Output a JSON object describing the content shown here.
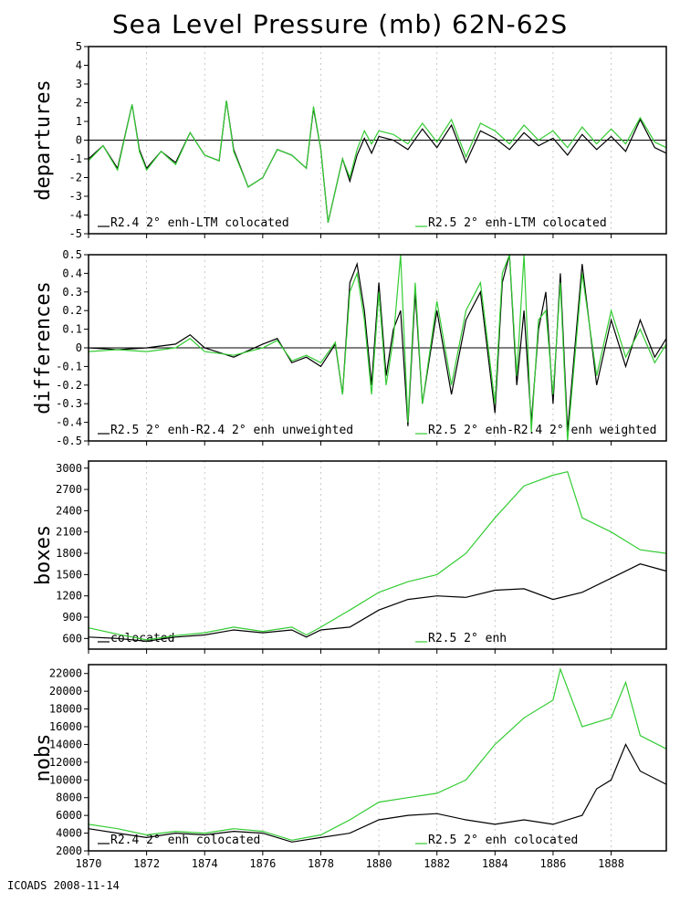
{
  "title": "Sea Level Pressure (mb) 62N-62S",
  "footer": "ICOADS 2008-11-14",
  "colors": {
    "black_series": "#000000",
    "green_series": "#33cc33",
    "zero_line": "#000000"
  },
  "chart_data": [
    {
      "type": "line",
      "ylabel": "departures",
      "ylim": [
        -5,
        5
      ],
      "yticks": [
        -5,
        -4,
        -3,
        -2,
        -1,
        0,
        1,
        2,
        3,
        4,
        5
      ],
      "xlim": [
        1870,
        1889.9
      ],
      "xticks": [
        1870,
        1872,
        1874,
        1876,
        1878,
        1880,
        1882,
        1884,
        1886,
        1888
      ],
      "zero_line": true,
      "series": [
        {
          "name": "R2.4 2° enh-LTM colocated",
          "color": "black",
          "x": [
            1870.0,
            1870.5,
            1871.0,
            1871.5,
            1871.75,
            1872.0,
            1872.5,
            1873.0,
            1873.5,
            1874.0,
            1874.5,
            1874.75,
            1875.0,
            1875.5,
            1876.0,
            1876.5,
            1877.0,
            1877.5,
            1877.75,
            1878.0,
            1878.25,
            1878.75,
            1879.0,
            1879.25,
            1879.5,
            1879.75,
            1880.0,
            1880.5,
            1881.0,
            1881.5,
            1882.0,
            1882.5,
            1883.0,
            1883.5,
            1884.0,
            1884.5,
            1885.0,
            1885.5,
            1886.0,
            1886.5,
            1887.0,
            1887.5,
            1888.0,
            1888.5,
            1889.0,
            1889.5,
            1889.9
          ],
          "y": [
            -1.0,
            -0.3,
            -1.5,
            1.9,
            -0.5,
            -1.5,
            -0.6,
            -1.2,
            0.4,
            -0.8,
            -1.1,
            2.1,
            -0.5,
            -2.5,
            -2.0,
            -0.5,
            -0.8,
            -1.5,
            1.7,
            -0.5,
            -4.4,
            -1.0,
            -2.2,
            -0.8,
            0.1,
            -0.7,
            0.2,
            0.0,
            -0.5,
            0.6,
            -0.4,
            0.8,
            -1.2,
            0.5,
            0.1,
            -0.5,
            0.4,
            -0.3,
            0.1,
            -0.8,
            0.3,
            -0.5,
            0.2,
            -0.6,
            1.1,
            -0.4,
            -0.7
          ]
        },
        {
          "name": "R2.5 2° enh-LTM colocated",
          "color": "green",
          "x": [
            1870.0,
            1870.5,
            1871.0,
            1871.5,
            1871.75,
            1872.0,
            1872.5,
            1873.0,
            1873.5,
            1874.0,
            1874.5,
            1874.75,
            1875.0,
            1875.5,
            1876.0,
            1876.5,
            1877.0,
            1877.5,
            1877.75,
            1878.0,
            1878.25,
            1878.75,
            1879.0,
            1879.25,
            1879.5,
            1879.75,
            1880.0,
            1880.5,
            1881.0,
            1881.5,
            1882.0,
            1882.5,
            1883.0,
            1883.5,
            1884.0,
            1884.5,
            1885.0,
            1885.5,
            1886.0,
            1886.5,
            1887.0,
            1887.5,
            1888.0,
            1888.5,
            1889.0,
            1889.5,
            1889.9
          ],
          "y": [
            -1.1,
            -0.3,
            -1.6,
            1.9,
            -0.6,
            -1.6,
            -0.6,
            -1.3,
            0.4,
            -0.8,
            -1.1,
            2.1,
            -0.6,
            -2.5,
            -2.0,
            -0.5,
            -0.8,
            -1.5,
            1.8,
            -0.5,
            -4.4,
            -1.0,
            -2.0,
            -0.5,
            0.5,
            -0.2,
            0.5,
            0.3,
            -0.2,
            0.9,
            -0.1,
            1.1,
            -0.9,
            0.9,
            0.5,
            -0.2,
            0.8,
            0.0,
            0.5,
            -0.4,
            0.7,
            -0.2,
            0.6,
            -0.2,
            1.2,
            -0.1,
            -0.4
          ]
        }
      ]
    },
    {
      "type": "line",
      "ylabel": "differences",
      "ylim": [
        -0.5,
        0.5
      ],
      "yticks": [
        -0.5,
        -0.4,
        -0.3,
        -0.2,
        -0.1,
        0,
        0.1,
        0.2,
        0.3,
        0.4,
        0.5
      ],
      "xlim": [
        1870,
        1889.9
      ],
      "xticks": [
        1870,
        1872,
        1874,
        1876,
        1878,
        1880,
        1882,
        1884,
        1886,
        1888
      ],
      "zero_line": true,
      "series": [
        {
          "name": "R2.5 2° enh-R2.4 2° enh unweighted",
          "color": "black",
          "x": [
            1870.0,
            1871.0,
            1872.0,
            1873.0,
            1873.5,
            1874.0,
            1875.0,
            1876.0,
            1876.5,
            1877.0,
            1877.5,
            1878.0,
            1878.5,
            1878.75,
            1879.0,
            1879.25,
            1879.5,
            1879.75,
            1880.0,
            1880.25,
            1880.5,
            1880.75,
            1881.0,
            1881.25,
            1881.5,
            1882.0,
            1882.5,
            1883.0,
            1883.5,
            1884.0,
            1884.25,
            1884.5,
            1884.75,
            1885.0,
            1885.25,
            1885.5,
            1885.75,
            1886.0,
            1886.25,
            1886.5,
            1887.0,
            1887.5,
            1888.0,
            1888.5,
            1889.0,
            1889.5,
            1889.9
          ],
          "y": [
            0.0,
            -0.01,
            0.0,
            0.02,
            0.07,
            0.0,
            -0.05,
            0.02,
            0.05,
            -0.08,
            -0.05,
            -0.1,
            0.02,
            -0.25,
            0.35,
            0.45,
            0.2,
            -0.2,
            0.35,
            -0.15,
            0.1,
            0.2,
            -0.42,
            0.3,
            -0.3,
            0.2,
            -0.25,
            0.15,
            0.3,
            -0.35,
            0.35,
            0.5,
            -0.2,
            0.2,
            -0.4,
            0.1,
            0.3,
            -0.3,
            0.4,
            -0.45,
            0.45,
            -0.2,
            0.15,
            -0.1,
            0.15,
            -0.05,
            0.05
          ]
        },
        {
          "name": "R2.5 2° enh-R2.4 2° enh weighted",
          "color": "green",
          "x": [
            1870.0,
            1871.0,
            1872.0,
            1873.0,
            1873.5,
            1874.0,
            1875.0,
            1876.0,
            1876.5,
            1877.0,
            1877.5,
            1878.0,
            1878.5,
            1878.75,
            1879.0,
            1879.25,
            1879.5,
            1879.75,
            1880.0,
            1880.25,
            1880.5,
            1880.75,
            1881.0,
            1881.25,
            1881.5,
            1882.0,
            1882.5,
            1883.0,
            1883.5,
            1884.0,
            1884.25,
            1884.5,
            1884.75,
            1885.0,
            1885.25,
            1885.5,
            1885.75,
            1886.0,
            1886.25,
            1886.5,
            1887.0,
            1887.5,
            1888.0,
            1888.5,
            1889.0,
            1889.5,
            1889.9
          ],
          "y": [
            -0.02,
            -0.01,
            -0.02,
            0.0,
            0.05,
            -0.02,
            -0.04,
            0.0,
            0.04,
            -0.07,
            -0.04,
            -0.08,
            0.03,
            -0.25,
            0.3,
            0.4,
            0.15,
            -0.25,
            0.3,
            -0.2,
            0.05,
            0.5,
            -0.4,
            0.35,
            -0.3,
            0.25,
            -0.2,
            0.2,
            0.35,
            -0.3,
            0.4,
            0.5,
            -0.15,
            0.5,
            -0.45,
            0.15,
            0.2,
            -0.25,
            0.35,
            -0.5,
            0.4,
            -0.15,
            0.2,
            -0.05,
            0.1,
            -0.08,
            0.02
          ]
        }
      ]
    },
    {
      "type": "line",
      "ylabel": "boxes",
      "ylim": [
        450,
        3100
      ],
      "yticks": [
        600,
        900,
        1200,
        1500,
        1800,
        2100,
        2400,
        2700,
        3000
      ],
      "xlim": [
        1870,
        1889.9
      ],
      "xticks": [
        1870,
        1872,
        1874,
        1876,
        1878,
        1880,
        1882,
        1884,
        1886,
        1888
      ],
      "zero_line": false,
      "series": [
        {
          "name": "colocated",
          "color": "black",
          "x": [
            1870.0,
            1871.0,
            1872.0,
            1873.0,
            1874.0,
            1875.0,
            1876.0,
            1877.0,
            1877.5,
            1878.0,
            1879.0,
            1880.0,
            1881.0,
            1882.0,
            1883.0,
            1884.0,
            1885.0,
            1886.0,
            1887.0,
            1888.0,
            1889.0,
            1889.9
          ],
          "y": [
            620,
            600,
            560,
            620,
            650,
            720,
            680,
            720,
            620,
            720,
            760,
            1000,
            1150,
            1200,
            1180,
            1280,
            1300,
            1150,
            1250,
            1450,
            1650,
            1550
          ]
        },
        {
          "name": "R2.5 2° enh",
          "color": "green",
          "x": [
            1870.0,
            1871.0,
            1872.0,
            1873.0,
            1874.0,
            1875.0,
            1876.0,
            1877.0,
            1877.5,
            1878.0,
            1879.0,
            1880.0,
            1881.0,
            1882.0,
            1883.0,
            1884.0,
            1885.0,
            1886.0,
            1886.5,
            1887.0,
            1888.0,
            1889.0,
            1889.9
          ],
          "y": [
            750,
            660,
            580,
            640,
            680,
            760,
            700,
            760,
            650,
            760,
            1000,
            1250,
            1400,
            1500,
            1800,
            2300,
            2750,
            2900,
            2950,
            2300,
            2100,
            1850,
            1800
          ]
        }
      ]
    },
    {
      "type": "line",
      "ylabel": "nobs",
      "ylim": [
        2000,
        23000
      ],
      "yticks": [
        2000,
        4000,
        6000,
        8000,
        10000,
        12000,
        14000,
        16000,
        18000,
        20000,
        22000
      ],
      "xlim": [
        1870,
        1889.9
      ],
      "xticks": [
        1870,
        1872,
        1874,
        1876,
        1878,
        1880,
        1882,
        1884,
        1886,
        1888
      ],
      "zero_line": false,
      "series": [
        {
          "name": "R2.4 2° enh colocated",
          "color": "black",
          "x": [
            1870.0,
            1871.0,
            1872.0,
            1873.0,
            1874.0,
            1875.0,
            1876.0,
            1877.0,
            1878.0,
            1879.0,
            1880.0,
            1881.0,
            1882.0,
            1883.0,
            1884.0,
            1885.0,
            1886.0,
            1887.0,
            1887.5,
            1888.0,
            1888.5,
            1889.0,
            1889.9
          ],
          "y": [
            4500,
            4000,
            3500,
            4000,
            3800,
            4200,
            4000,
            3000,
            3500,
            4000,
            5500,
            6000,
            6200,
            5500,
            5000,
            5500,
            5000,
            6000,
            9000,
            10000,
            14000,
            11000,
            9500
          ]
        },
        {
          "name": "R2.5 2° enh colocated",
          "color": "green",
          "x": [
            1870.0,
            1871.0,
            1872.0,
            1873.0,
            1874.0,
            1875.0,
            1876.0,
            1877.0,
            1878.0,
            1879.0,
            1880.0,
            1881.0,
            1882.0,
            1883.0,
            1884.0,
            1885.0,
            1886.0,
            1886.25,
            1887.0,
            1888.0,
            1888.5,
            1889.0,
            1889.9
          ],
          "y": [
            5000,
            4500,
            3800,
            4200,
            4000,
            4500,
            4200,
            3200,
            3800,
            5500,
            7500,
            8000,
            8500,
            10000,
            14000,
            17000,
            19000,
            22500,
            16000,
            17000,
            21000,
            15000,
            13500
          ]
        }
      ]
    }
  ]
}
